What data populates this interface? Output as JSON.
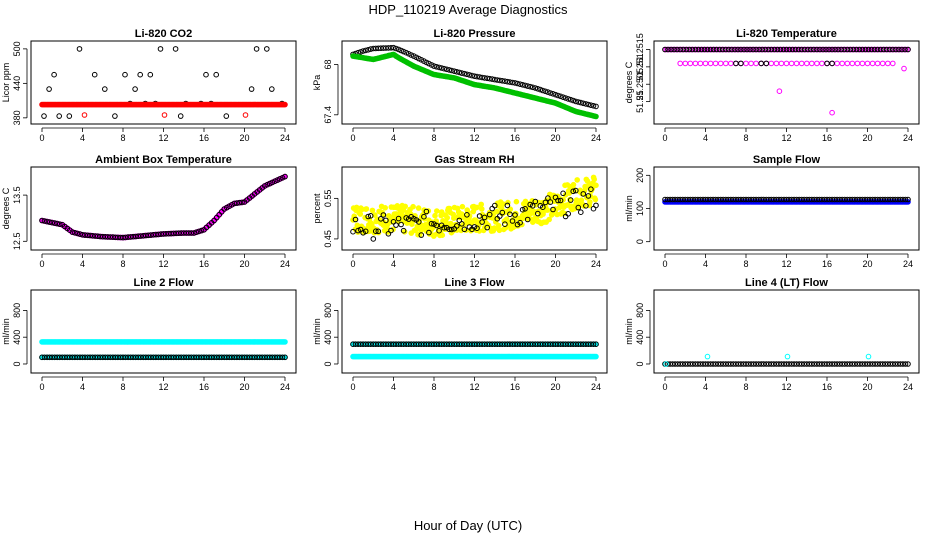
{
  "figure": {
    "title": "HDP_110219  Average Diagnostics",
    "xlabel": "Hour of Day (UTC)"
  },
  "chart_data": [
    {
      "type": "scatter",
      "title": "Li-820 CO2",
      "ylabel": "Licor ppm",
      "xlim": [
        0,
        24
      ],
      "xticks": [
        0,
        4,
        8,
        12,
        16,
        20,
        24
      ],
      "ylim": [
        378,
        505
      ],
      "yticks": [
        380,
        440,
        500
      ],
      "series": [
        {
          "color": "#000000",
          "pattern": "levels",
          "levels": [
            383,
            405,
            430,
            455,
            500
          ],
          "step": 0.5
        },
        {
          "color": "#ff0000",
          "pattern": "flat",
          "value": 403,
          "step": 0.125,
          "filled": true
        },
        {
          "color": "#ff0000",
          "pattern": "points",
          "x": [
            4.2,
            12.1,
            20.1
          ],
          "y": [
            385,
            385,
            385
          ]
        }
      ]
    },
    {
      "type": "scatter",
      "title": "Li-820 Pressure",
      "ylabel": "kPa",
      "xlim": [
        0,
        24
      ],
      "xticks": [
        0,
        4,
        8,
        12,
        16,
        20,
        24
      ],
      "ylim": [
        67.35,
        68.22
      ],
      "yticks": [
        67.4,
        68.0
      ],
      "series": [
        {
          "color": "#000000",
          "pattern": "curve",
          "x": [
            0,
            1,
            2,
            4,
            4.5,
            6,
            8,
            10,
            12,
            14,
            16,
            18,
            20,
            22,
            24
          ],
          "y": [
            68.12,
            68.16,
            68.19,
            68.2,
            68.18,
            68.1,
            67.98,
            67.92,
            67.86,
            67.82,
            67.78,
            67.72,
            67.64,
            67.56,
            67.5
          ],
          "step": 0.25
        },
        {
          "color": "#00c000",
          "pattern": "curve",
          "x": [
            0,
            1,
            2,
            4,
            4.5,
            6,
            8,
            10,
            12,
            14,
            16,
            18,
            20,
            22,
            24
          ],
          "y": [
            68.1,
            68.08,
            68.06,
            68.12,
            68.08,
            67.98,
            67.88,
            67.84,
            67.76,
            67.72,
            67.66,
            67.6,
            67.54,
            67.44,
            67.38
          ],
          "step": 0.125,
          "filled": true
        }
      ]
    },
    {
      "type": "scatter",
      "title": "Li-820 Temperature",
      "ylabel": "degrees C",
      "xlim": [
        0,
        24
      ],
      "xticks": [
        0,
        4,
        8,
        12,
        16,
        20,
        24
      ],
      "ylim": [
        51.2495,
        51.2516
      ],
      "yticks": [
        51.25,
        51.2505,
        51.251,
        51.2515
      ],
      "series": [
        {
          "color": "#ff00ff",
          "pattern": "flat",
          "value": 51.2515,
          "step": 0.15
        },
        {
          "color": "#000000",
          "pattern": "flat",
          "value": 51.2515,
          "step": 0.3
        },
        {
          "color": "#ff00ff",
          "pattern": "flat",
          "value": 51.2511,
          "step": 0.5,
          "from": 1.5,
          "to": 22.5
        },
        {
          "color": "#000000",
          "pattern": "points",
          "x": [
            7,
            7.5,
            9.5,
            10,
            16,
            16.5
          ],
          "y": [
            51.2511,
            51.2511,
            51.2511,
            51.2511,
            51.2511,
            51.2511
          ]
        },
        {
          "color": "#ff00ff",
          "pattern": "points",
          "x": [
            11.3,
            16.5,
            23.6
          ],
          "y": [
            51.2503,
            51.24968,
            51.25095
          ]
        }
      ]
    },
    {
      "type": "scatter",
      "title": "Ambient Box Temperature",
      "ylabel": "degrees C",
      "xlim": [
        0,
        24
      ],
      "xticks": [
        0,
        4,
        8,
        12,
        16,
        20,
        24
      ],
      "ylim": [
        12.42,
        14.0
      ],
      "yticks": [
        12.5,
        13.5
      ],
      "series": [
        {
          "color": "#ff00ff",
          "pattern": "curve",
          "x": [
            0,
            2,
            3,
            4,
            6,
            8,
            10,
            12,
            14,
            15,
            16,
            17,
            18,
            19,
            20,
            22,
            24
          ],
          "y": [
            12.95,
            12.86,
            12.7,
            12.64,
            12.6,
            12.58,
            12.62,
            12.66,
            12.68,
            12.68,
            12.75,
            12.95,
            13.2,
            13.32,
            13.35,
            13.7,
            13.9
          ],
          "step": 0.125,
          "filled": true
        },
        {
          "color": "#000000",
          "pattern": "curve",
          "x": [
            0,
            2,
            3,
            4,
            6,
            8,
            10,
            12,
            14,
            15,
            16,
            17,
            18,
            19,
            20,
            22,
            24
          ],
          "y": [
            12.95,
            12.86,
            12.7,
            12.64,
            12.6,
            12.58,
            12.62,
            12.66,
            12.68,
            12.68,
            12.75,
            12.95,
            13.2,
            13.32,
            13.35,
            13.7,
            13.9
          ],
          "step": 0.25
        }
      ]
    },
    {
      "type": "scatter",
      "title": "Gas Stream RH",
      "ylabel": "percent",
      "xlim": [
        0,
        24
      ],
      "xticks": [
        0,
        4,
        8,
        12,
        16,
        20,
        24
      ],
      "ylim": [
        0.435,
        0.615
      ],
      "yticks": [
        0.45,
        0.55
      ],
      "series": [
        {
          "color": "#ffff00",
          "pattern": "noisy",
          "x": [
            0,
            4,
            8,
            12,
            16,
            18,
            20,
            21,
            22,
            24
          ],
          "y": [
            0.5,
            0.5,
            0.49,
            0.5,
            0.51,
            0.52,
            0.53,
            0.55,
            0.56,
            0.57
          ],
          "step": 0.06,
          "spread": 0.035,
          "filled": true
        },
        {
          "color": "#000000",
          "pattern": "noisy",
          "x": [
            0,
            4,
            8,
            12,
            16,
            20,
            24
          ],
          "y": [
            0.48,
            0.48,
            0.49,
            0.5,
            0.51,
            0.53,
            0.55
          ],
          "step": 0.25,
          "spread": 0.03
        }
      ]
    },
    {
      "type": "scatter",
      "title": "Sample Flow",
      "ylabel": "ml/min",
      "xlim": [
        0,
        24
      ],
      "xticks": [
        0,
        4,
        8,
        12,
        16,
        20,
        24
      ],
      "ylim": [
        -10,
        210
      ],
      "yticks": [
        0,
        100,
        200
      ],
      "series": [
        {
          "color": "#0000ff",
          "pattern": "flat",
          "value": 120,
          "step": 0.125,
          "filled": true
        },
        {
          "color": "#000000",
          "pattern": "flat",
          "value": 127,
          "step": 0.25
        }
      ]
    },
    {
      "type": "scatter",
      "title": "Line 2 Flow",
      "ylabel": "ml/min",
      "xlim": [
        0,
        24
      ],
      "xticks": [
        0,
        4,
        8,
        12,
        16,
        20,
        24
      ],
      "ylim": [
        -60,
        1030
      ],
      "yticks": [
        0,
        400,
        800
      ],
      "series": [
        {
          "color": "#00ffff",
          "pattern": "flat",
          "value": 330,
          "step": 0.125,
          "filled": true
        },
        {
          "color": "#00ffff",
          "pattern": "flat",
          "value": 100,
          "step": 0.25,
          "filled": true
        },
        {
          "color": "#000000",
          "pattern": "flat",
          "value": 100,
          "step": 0.25
        }
      ]
    },
    {
      "type": "scatter",
      "title": "Line 3 Flow",
      "ylabel": "ml/min",
      "xlim": [
        0,
        24
      ],
      "xticks": [
        0,
        4,
        8,
        12,
        16,
        20,
        24
      ],
      "ylim": [
        -60,
        1030
      ],
      "yticks": [
        0,
        400,
        800
      ],
      "series": [
        {
          "color": "#00ffff",
          "pattern": "flat",
          "value": 110,
          "step": 0.125,
          "filled": true
        },
        {
          "color": "#00ffff",
          "pattern": "flat",
          "value": 295,
          "step": 0.25,
          "filled": true
        },
        {
          "color": "#000000",
          "pattern": "flat",
          "value": 295,
          "step": 0.25
        }
      ]
    },
    {
      "type": "scatter",
      "title": "Line 4 (LT) Flow",
      "ylabel": "ml/min",
      "xlim": [
        0,
        24
      ],
      "xticks": [
        0,
        4,
        8,
        12,
        16,
        20,
        24
      ],
      "ylim": [
        -60,
        1030
      ],
      "yticks": [
        0,
        400,
        800
      ],
      "series": [
        {
          "color": "#000000",
          "pattern": "flat",
          "value": 0,
          "step": 0.25
        },
        {
          "color": "#00ffff",
          "pattern": "points",
          "x": [
            0.1,
            4.2,
            12.1,
            20.1
          ],
          "y": [
            0,
            110,
            110,
            110
          ]
        }
      ]
    }
  ]
}
